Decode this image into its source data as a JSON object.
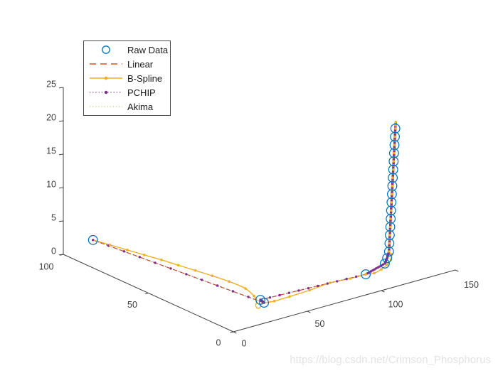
{
  "figure": {
    "background": "#ffffff",
    "axis_color": "#404040",
    "tick_label_color": "#3d3d3d"
  },
  "watermark": {
    "text": "https://blog.csdn.net/Crimson_Phosphorus",
    "color": "#e3e3e3"
  },
  "legend": {
    "items": [
      {
        "label": "Raw Data",
        "series": "raw",
        "marker": "circle"
      },
      {
        "label": "Linear",
        "series": "linear",
        "line": "dashed"
      },
      {
        "label": "B-Spline",
        "series": "bspline",
        "line": "solid",
        "marker": "dot"
      },
      {
        "label": "PCHIP",
        "series": "pchip",
        "line": "dotted",
        "marker": "dot"
      },
      {
        "label": "Akima",
        "series": "akima",
        "line": "dotted"
      }
    ]
  },
  "chart_data": {
    "type": "line",
    "title": "",
    "xlabel": "",
    "ylabel": "",
    "zlabel": "",
    "axes": {
      "x": {
        "range": [
          0,
          150
        ],
        "ticks": [
          0,
          50,
          100,
          150
        ]
      },
      "y": {
        "range": [
          0,
          100
        ],
        "ticks": [
          0,
          50,
          100
        ]
      },
      "z": {
        "range": [
          0,
          25
        ],
        "ticks": [
          0,
          5,
          10,
          15,
          20,
          25
        ]
      }
    },
    "series": [
      {
        "name": "Raw Data",
        "color": "#0072BD",
        "style": "scatter-circles",
        "points": [
          [
            13.4,
            94.2,
            2.0
          ],
          [
            38.4,
            15.4,
            0.2
          ],
          [
            37.7,
            16.9,
            0.5
          ],
          [
            101.1,
            10.1,
            1.2
          ],
          [
            112.8,
            9.1,
            2.2
          ],
          [
            113.9,
            8.7,
            3.0
          ],
          [
            114.6,
            8.2,
            4.0
          ],
          [
            114.74,
            8.07,
            5.23
          ],
          [
            114.88,
            7.95,
            6.47
          ],
          [
            115.02,
            7.82,
            7.7
          ],
          [
            115.16,
            7.69,
            8.93
          ],
          [
            115.3,
            7.57,
            10.17
          ],
          [
            115.44,
            7.44,
            11.4
          ],
          [
            115.58,
            7.31,
            12.63
          ],
          [
            115.72,
            7.19,
            13.87
          ],
          [
            115.86,
            7.06,
            15.1
          ],
          [
            116.0,
            6.93,
            16.33
          ],
          [
            116.14,
            6.81,
            17.57
          ],
          [
            116.28,
            6.68,
            18.8
          ],
          [
            116.42,
            6.55,
            20.03
          ],
          [
            116.56,
            6.43,
            21.27
          ],
          [
            116.7,
            6.3,
            22.5
          ]
        ],
        "tail_point": [
          116.9,
          6.2,
          23.45
        ]
      },
      {
        "name": "Linear",
        "color": "#D95319",
        "style": "dashed",
        "interpolates": "Raw Data"
      },
      {
        "name": "B-Spline",
        "color": "#EDB120",
        "style": "solid-with-dots",
        "points": [
          [
            13.4,
            94.2,
            2.0
          ],
          [
            16.6,
            87.0,
            1.9
          ],
          [
            19.8,
            79.6,
            1.8
          ],
          [
            23.0,
            72.4,
            1.7
          ],
          [
            26.2,
            65.1,
            1.6
          ],
          [
            29.0,
            57.6,
            1.5
          ],
          [
            31.9,
            50.1,
            1.4
          ],
          [
            34.7,
            42.6,
            1.3
          ],
          [
            37.8,
            35.4,
            1.1
          ],
          [
            40.0,
            27.7,
            0.8
          ],
          [
            38.6,
            21.5,
            0.5
          ],
          [
            35.5,
            17.1,
            0.35
          ],
          [
            32.9,
            15.5,
            0.22
          ],
          [
            31.2,
            13.3,
            0.1
          ],
          [
            32.6,
            12.9,
            0.06
          ],
          [
            34.6,
            14.0,
            0.12
          ],
          [
            37.0,
            15.3,
            0.2
          ],
          [
            43.6,
            13.8,
            0.3
          ],
          [
            53.3,
            13.3,
            0.45
          ],
          [
            66.3,
            12.8,
            0.65
          ],
          [
            80.5,
            13.1,
            0.85
          ],
          [
            92.0,
            11.2,
            1.0
          ],
          [
            101.1,
            10.1,
            1.2
          ],
          [
            103.8,
            7.5,
            1.5
          ],
          [
            108.0,
            6.9,
            1.9
          ],
          [
            112.1,
            7.2,
            2.3
          ],
          [
            114.7,
            7.1,
            2.9
          ],
          [
            115.9,
            7.7,
            3.55
          ],
          [
            114.6,
            8.2,
            4.0
          ],
          [
            114.74,
            8.07,
            5.23
          ],
          [
            114.88,
            7.95,
            6.47
          ],
          [
            115.02,
            7.82,
            7.7
          ],
          [
            115.16,
            7.69,
            8.93
          ],
          [
            115.3,
            7.57,
            10.17
          ],
          [
            115.44,
            7.44,
            11.4
          ],
          [
            115.58,
            7.31,
            12.63
          ],
          [
            115.72,
            7.19,
            13.87
          ],
          [
            115.86,
            7.06,
            15.1
          ],
          [
            116.0,
            6.93,
            16.33
          ],
          [
            116.14,
            6.81,
            17.57
          ],
          [
            116.28,
            6.68,
            18.8
          ],
          [
            116.42,
            6.55,
            20.03
          ],
          [
            116.56,
            6.43,
            21.27
          ],
          [
            116.7,
            6.3,
            22.5
          ],
          [
            116.9,
            6.2,
            23.45
          ]
        ]
      },
      {
        "name": "PCHIP",
        "color": "#7E2F8E",
        "style": "dotted-with-dots",
        "interpolates": "Raw Data"
      },
      {
        "name": "Akima",
        "color": "#C9CF85",
        "style": "dotted",
        "interpolates": "Raw Data"
      }
    ]
  }
}
